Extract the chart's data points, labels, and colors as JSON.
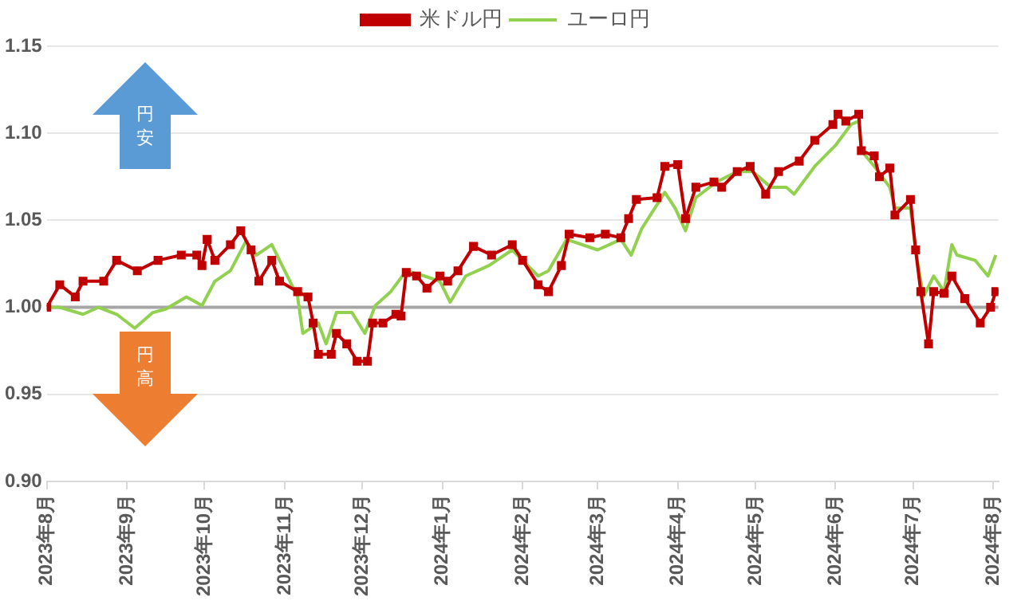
{
  "chart_data": {
    "type": "line",
    "xlim": [
      "2023-08-01",
      "2024-08-03"
    ],
    "xticks": [
      {
        "value": "2023-08-01",
        "label": "2023年8月"
      },
      {
        "value": "2023-09-01",
        "label": "2023年9月"
      },
      {
        "value": "2023-10-01",
        "label": "2023年10月"
      },
      {
        "value": "2023-11-01",
        "label": "2023年11月"
      },
      {
        "value": "2023-12-01",
        "label": "2023年12月"
      },
      {
        "value": "2024-01-01",
        "label": "2024年1月"
      },
      {
        "value": "2024-02-01",
        "label": "2024年2月"
      },
      {
        "value": "2024-03-01",
        "label": "2024年3月"
      },
      {
        "value": "2024-04-01",
        "label": "2024年4月"
      },
      {
        "value": "2024-05-01",
        "label": "2024年5月"
      },
      {
        "value": "2024-06-01",
        "label": "2024年6月"
      },
      {
        "value": "2024-07-01",
        "label": "2024年7月"
      },
      {
        "value": "2024-08-01",
        "label": "2024年8月"
      }
    ],
    "ylim": [
      0.9,
      1.15
    ],
    "yticks": [
      {
        "value": 0.9,
        "label": "0.90"
      },
      {
        "value": 0.95,
        "label": "0.95"
      },
      {
        "value": 1.0,
        "label": "1.00"
      },
      {
        "value": 1.05,
        "label": "1.05"
      },
      {
        "value": 1.1,
        "label": "1.10"
      },
      {
        "value": 1.15,
        "label": "1.15"
      }
    ],
    "grid": "y",
    "legend": "top",
    "ref_lines": [
      {
        "axis": "y",
        "value": 1.0,
        "color": "#a6a6a6"
      }
    ],
    "annotations": [
      "円安",
      "円高"
    ],
    "series": [
      {
        "name": "米ドル円",
        "color": "#c00000",
        "marker": "square",
        "x": [
          "2023-08-01",
          "2023-08-06",
          "2023-08-12",
          "2023-08-15",
          "2023-08-23",
          "2023-08-28",
          "2023-09-05",
          "2023-09-13",
          "2023-09-22",
          "2023-09-28",
          "2023-09-30",
          "2023-10-02",
          "2023-10-05",
          "2023-10-11",
          "2023-10-15",
          "2023-10-19",
          "2023-10-22",
          "2023-10-27",
          "2023-10-30",
          "2023-11-06",
          "2023-11-10",
          "2023-11-12",
          "2023-11-14",
          "2023-11-19",
          "2023-11-21",
          "2023-11-25",
          "2023-11-29",
          "2023-12-03",
          "2023-12-05",
          "2023-12-09",
          "2023-12-14",
          "2023-12-16",
          "2023-12-18",
          "2023-12-22",
          "2023-12-26",
          "2023-12-31",
          "2024-01-03",
          "2024-01-07",
          "2024-01-13",
          "2024-01-20",
          "2024-01-28",
          "2024-02-01",
          "2024-02-07",
          "2024-02-11",
          "2024-02-16",
          "2024-02-19",
          "2024-02-27",
          "2024-03-04",
          "2024-03-10",
          "2024-03-13",
          "2024-03-16",
          "2024-03-24",
          "2024-03-27",
          "2024-04-01",
          "2024-04-04",
          "2024-04-08",
          "2024-04-15",
          "2024-04-18",
          "2024-04-24",
          "2024-04-29",
          "2024-05-05",
          "2024-05-10",
          "2024-05-18",
          "2024-05-24",
          "2024-05-31",
          "2024-06-02",
          "2024-06-05",
          "2024-06-10",
          "2024-06-11",
          "2024-06-16",
          "2024-06-18",
          "2024-06-22",
          "2024-06-24",
          "2024-06-30",
          "2024-07-02",
          "2024-07-04",
          "2024-07-07",
          "2024-07-09",
          "2024-07-13",
          "2024-07-16",
          "2024-07-21",
          "2024-07-27",
          "2024-07-31",
          "2024-08-02"
        ],
        "values": [
          1.0,
          1.013,
          1.006,
          1.015,
          1.015,
          1.027,
          1.021,
          1.027,
          1.03,
          1.03,
          1.024,
          1.039,
          1.027,
          1.036,
          1.044,
          1.033,
          1.015,
          1.027,
          1.015,
          1.009,
          1.006,
          0.991,
          0.973,
          0.973,
          0.985,
          0.979,
          0.969,
          0.969,
          0.991,
          0.991,
          0.996,
          0.995,
          1.02,
          1.018,
          1.011,
          1.018,
          1.015,
          1.021,
          1.035,
          1.03,
          1.036,
          1.027,
          1.013,
          1.009,
          1.024,
          1.042,
          1.04,
          1.042,
          1.04,
          1.051,
          1.062,
          1.063,
          1.081,
          1.082,
          1.051,
          1.069,
          1.072,
          1.069,
          1.078,
          1.081,
          1.065,
          1.078,
          1.084,
          1.096,
          1.105,
          1.111,
          1.107,
          1.111,
          1.09,
          1.087,
          1.075,
          1.08,
          1.053,
          1.062,
          1.033,
          1.009,
          0.979,
          1.009,
          1.008,
          1.018,
          1.005,
          0.991,
          1.0,
          1.009
        ]
      },
      {
        "name": "ユーロ円",
        "color": "#92d050",
        "marker": "none",
        "x": [
          "2023-08-01",
          "2023-08-06",
          "2023-08-15",
          "2023-08-21",
          "2023-08-28",
          "2023-09-04",
          "2023-09-11",
          "2023-09-16",
          "2023-09-24",
          "2023-09-30",
          "2023-10-05",
          "2023-10-11",
          "2023-10-17",
          "2023-10-21",
          "2023-10-27",
          "2023-11-01",
          "2023-11-06",
          "2023-11-08",
          "2023-11-14",
          "2023-11-17",
          "2023-11-21",
          "2023-11-27",
          "2023-12-02",
          "2023-12-06",
          "2023-12-12",
          "2023-12-18",
          "2023-12-25",
          "2023-12-31",
          "2024-01-04",
          "2024-01-10",
          "2024-01-19",
          "2024-01-28",
          "2024-02-01",
          "2024-02-07",
          "2024-02-11",
          "2024-02-18",
          "2024-03-01",
          "2024-03-10",
          "2024-03-14",
          "2024-03-18",
          "2024-03-27",
          "2024-03-31",
          "2024-04-04",
          "2024-04-08",
          "2024-04-16",
          "2024-04-24",
          "2024-04-30",
          "2024-05-07",
          "2024-05-13",
          "2024-05-16",
          "2024-05-24",
          "2024-06-01",
          "2024-06-07",
          "2024-06-10",
          "2024-06-11",
          "2024-06-16",
          "2024-06-22",
          "2024-06-24",
          "2024-06-30",
          "2024-07-02",
          "2024-07-05",
          "2024-07-09",
          "2024-07-13",
          "2024-07-16",
          "2024-07-18",
          "2024-07-25",
          "2024-07-30",
          "2024-08-02"
        ],
        "values": [
          1.0,
          1.0,
          0.996,
          1.0,
          0.996,
          0.988,
          0.997,
          0.999,
          1.006,
          1.001,
          1.015,
          1.021,
          1.038,
          1.03,
          1.036,
          1.021,
          1.006,
          0.985,
          0.991,
          0.979,
          0.997,
          0.997,
          0.985,
          1.001,
          1.009,
          1.021,
          1.018,
          1.015,
          1.003,
          1.018,
          1.024,
          1.033,
          1.027,
          1.018,
          1.021,
          1.039,
          1.033,
          1.039,
          1.03,
          1.045,
          1.066,
          1.057,
          1.044,
          1.063,
          1.072,
          1.078,
          1.078,
          1.069,
          1.069,
          1.065,
          1.081,
          1.093,
          1.105,
          1.107,
          1.09,
          1.081,
          1.069,
          1.057,
          1.057,
          1.033,
          1.006,
          1.018,
          1.009,
          1.036,
          1.03,
          1.027,
          1.018,
          1.03
        ]
      }
    ]
  }
}
